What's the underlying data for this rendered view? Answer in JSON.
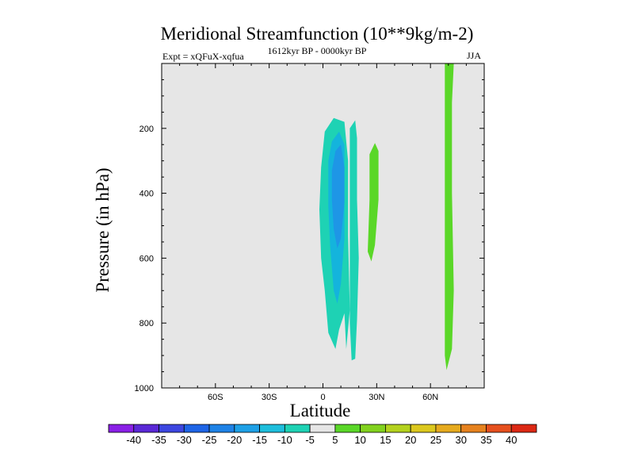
{
  "chart_data": {
    "type": "filled-contour",
    "title": "Meridional Streamfunction (10**9kg/m-2)",
    "subtitle_left": "Expt = xQFuX-xqfua",
    "subtitle_center": "1612kyr BP - 0000kyr BP",
    "subtitle_right": "JJA",
    "xlabel": "Latitude",
    "ylabel": "Pressure (in hPa)",
    "xlim": [
      -90,
      90
    ],
    "ylim": [
      1000,
      0
    ],
    "y_inverted": true,
    "x_ticks": [
      {
        "value": -60,
        "label": "60S"
      },
      {
        "value": -30,
        "label": "30S"
      },
      {
        "value": 0,
        "label": "0"
      },
      {
        "value": 30,
        "label": "30N"
      },
      {
        "value": 60,
        "label": "60N"
      }
    ],
    "y_ticks": [
      {
        "value": 200,
        "label": "200"
      },
      {
        "value": 400,
        "label": "400"
      },
      {
        "value": 600,
        "label": "600"
      },
      {
        "value": 800,
        "label": "800"
      },
      {
        "value": 1000,
        "label": "1000"
      }
    ],
    "background_color": "#e6e6e6",
    "regions": [
      {
        "name": "negative-cell",
        "level": -5,
        "color": "#1ed2b4",
        "points": [
          [
            -2,
            450
          ],
          [
            -1,
            320
          ],
          [
            1,
            210
          ],
          [
            6,
            168
          ],
          [
            12,
            180
          ],
          [
            14,
            300
          ],
          [
            14,
            530
          ],
          [
            15,
            760
          ],
          [
            13,
            880
          ],
          [
            12,
            770
          ],
          [
            9,
            820
          ],
          [
            7,
            880
          ],
          [
            3,
            830
          ],
          [
            1,
            700
          ],
          [
            -1,
            600
          ]
        ]
      },
      {
        "name": "negative-cell",
        "level": -10,
        "color": "#14b4dc",
        "points": [
          [
            3,
            300
          ],
          [
            5,
            240
          ],
          [
            9,
            210
          ],
          [
            12,
            250
          ],
          [
            12,
            380
          ],
          [
            12,
            540
          ],
          [
            10,
            680
          ],
          [
            8,
            740
          ],
          [
            6,
            700
          ],
          [
            4,
            560
          ],
          [
            3,
            440
          ]
        ]
      },
      {
        "name": "negative-cell",
        "level": -15,
        "color": "#1e96e6",
        "points": [
          [
            5,
            330
          ],
          [
            7,
            270
          ],
          [
            10,
            250
          ],
          [
            12,
            320
          ],
          [
            12,
            430
          ],
          [
            10,
            540
          ],
          [
            8,
            570
          ],
          [
            6,
            510
          ],
          [
            5,
            420
          ]
        ]
      },
      {
        "name": "negative-cell",
        "level": -5,
        "color": "#1ed2b4",
        "points": [
          [
            15,
            200
          ],
          [
            18,
            175
          ],
          [
            19,
            230
          ],
          [
            19,
            420
          ],
          [
            20,
            600
          ],
          [
            19,
            790
          ],
          [
            18,
            910
          ],
          [
            16,
            915
          ],
          [
            15,
            800
          ],
          [
            15,
            500
          ]
        ]
      },
      {
        "name": "positive-cell",
        "level": 5,
        "color": "#5ad728",
        "points": [
          [
            26,
            280
          ],
          [
            29,
            245
          ],
          [
            31,
            270
          ],
          [
            31,
            420
          ],
          [
            29,
            560
          ],
          [
            27,
            610
          ],
          [
            25,
            580
          ],
          [
            26,
            420
          ]
        ]
      },
      {
        "name": "positive-cell",
        "level": 5,
        "color": "#5ad728",
        "points": [
          [
            68,
            0
          ],
          [
            73,
            0
          ],
          [
            72,
            120
          ],
          [
            72,
            400
          ],
          [
            73,
            700
          ],
          [
            72,
            880
          ],
          [
            69,
            945
          ],
          [
            68,
            900
          ],
          [
            68,
            500
          ]
        ]
      }
    ],
    "colorbar": {
      "labels": [
        "-40",
        "-35",
        "-30",
        "-25",
        "-20",
        "-15",
        "-10",
        "-5",
        "5",
        "10",
        "15",
        "20",
        "25",
        "30",
        "35",
        "40"
      ],
      "colors": [
        "#8a20e6",
        "#5a28d6",
        "#3c46e0",
        "#1e64e6",
        "#1e82e6",
        "#1ea0e6",
        "#1ebedc",
        "#1ed2b4",
        "#e6e6e6",
        "#5ad728",
        "#82d21e",
        "#b4d21e",
        "#dcc81e",
        "#e6aa1e",
        "#e6821e",
        "#e6501e",
        "#dc2814"
      ]
    }
  }
}
